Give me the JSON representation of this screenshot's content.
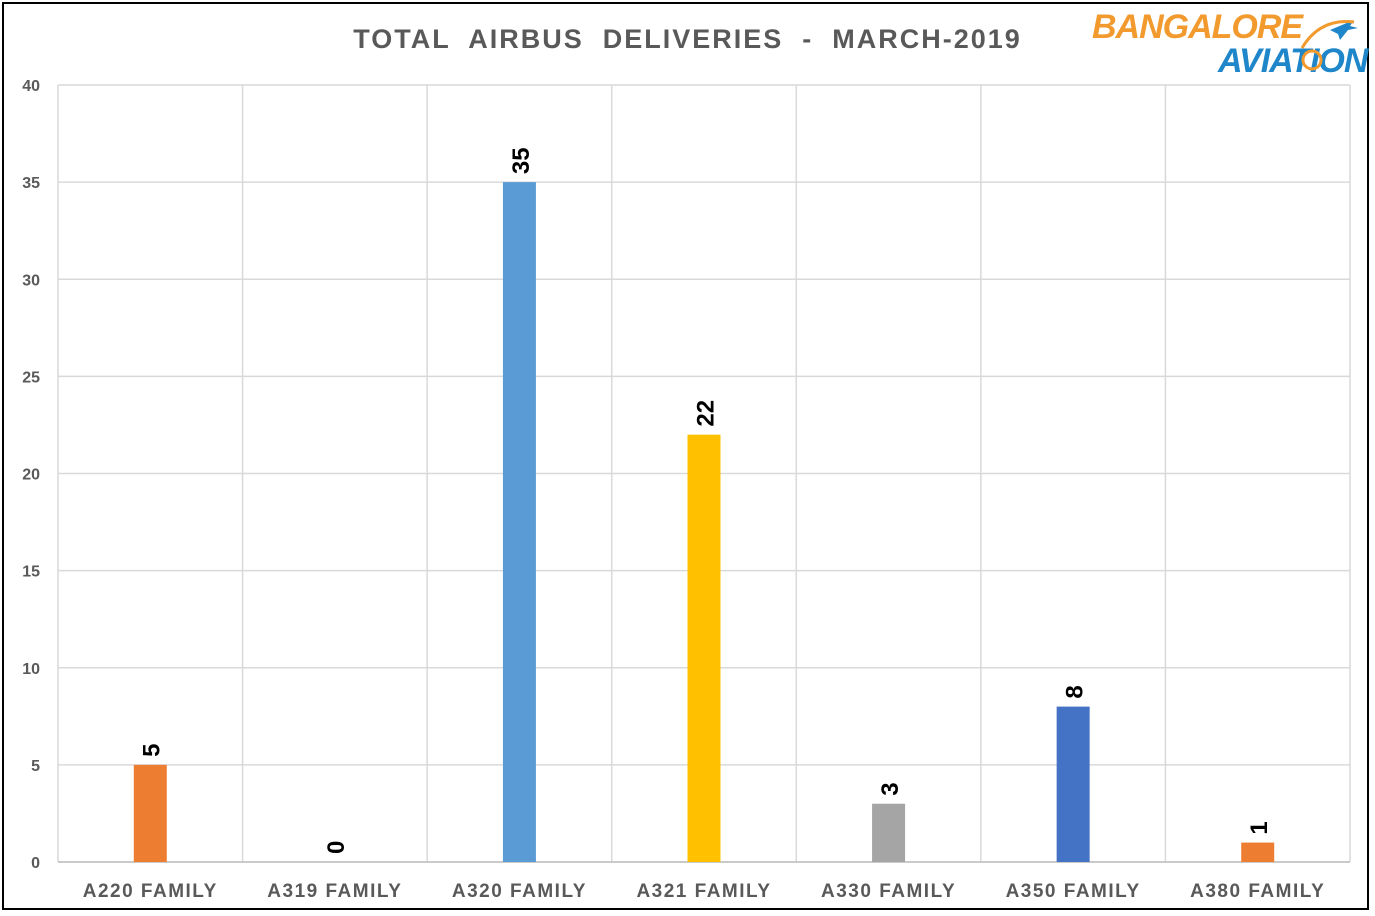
{
  "logo": {
    "line1": "BANGALORE",
    "line2": "AVIATION"
  },
  "chart_data": {
    "type": "bar",
    "title": "TOTAL  AIRBUS  DELIVERIES  -  MARCH-2019",
    "xlabel": "",
    "ylabel": "",
    "ylim": [
      0,
      40
    ],
    "yticks": [
      0,
      5,
      10,
      15,
      20,
      25,
      30,
      35,
      40
    ],
    "grid": true,
    "legend": "none",
    "categories": [
      "A220 FAMILY",
      "A319 FAMILY",
      "A320 FAMILY",
      "A321 FAMILY",
      "A330 FAMILY",
      "A350 FAMILY",
      "A380 FAMILY"
    ],
    "values": [
      5,
      0,
      35,
      22,
      3,
      8,
      1
    ],
    "colors": [
      "#ed7d31",
      "#ed7d31",
      "#5b9bd5",
      "#ffc000",
      "#a5a5a5",
      "#4472c4",
      "#ed7d31"
    ],
    "data_labels": [
      "5",
      "0",
      "35",
      "22",
      "3",
      "8",
      "1"
    ]
  }
}
